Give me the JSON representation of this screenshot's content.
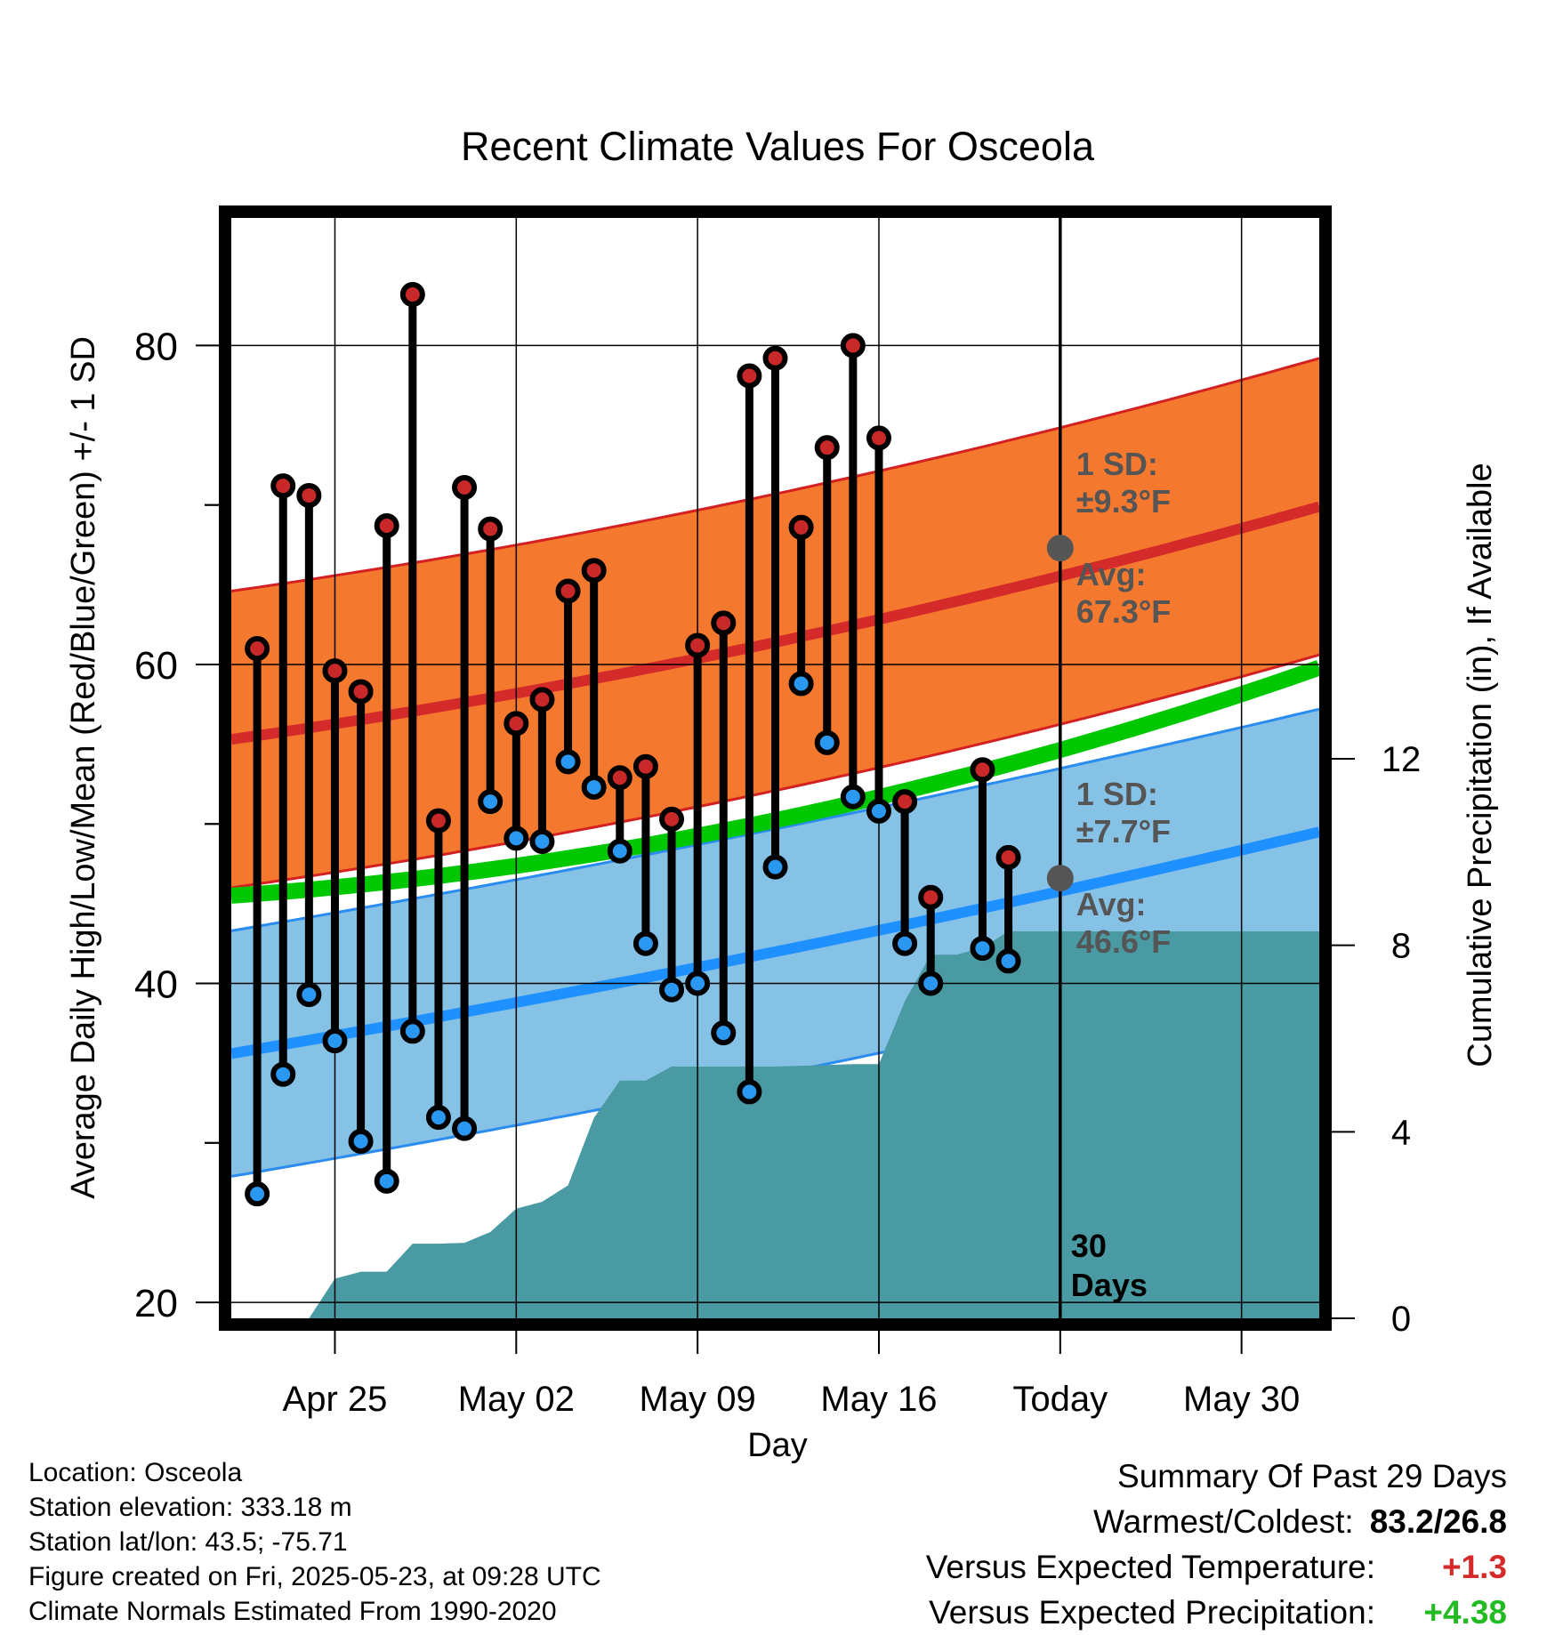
{
  "chart_data": {
    "type": "line",
    "title": "Recent Climate Values For Osceola",
    "xlabel": "Day",
    "ylabel_left": "Average Daily High/Low/Mean (Red/Blue/Green) +/- 1 SD",
    "ylabel_right": "Cumulative Precipitation (in), If Available",
    "ylim_left": [
      19,
      88
    ],
    "ylim_right": [
      0,
      23.6
    ],
    "yticks_left": [
      20,
      40,
      60,
      80
    ],
    "yticks_right": [
      0,
      4,
      8,
      12
    ],
    "x_range_days": [
      "2025-04-21",
      "2025-06-02"
    ],
    "x_ticks": [
      {
        "date": "2025-04-25",
        "label": "Apr 25"
      },
      {
        "date": "2025-05-02",
        "label": "May 02"
      },
      {
        "date": "2025-05-09",
        "label": "May 09"
      },
      {
        "date": "2025-05-16",
        "label": "May 16"
      },
      {
        "date": "2025-05-23",
        "label": "Today"
      },
      {
        "date": "2025-05-30",
        "label": "May 30"
      }
    ],
    "grid": true,
    "today_marker": {
      "date": "2025-05-23",
      "label": "30\nDays"
    },
    "daily": [
      {
        "date": "2025-04-22",
        "high": 61.0,
        "low": 26.8
      },
      {
        "date": "2025-04-23",
        "high": 71.2,
        "low": 34.3
      },
      {
        "date": "2025-04-24",
        "high": 70.6,
        "low": 39.3
      },
      {
        "date": "2025-04-25",
        "high": 59.6,
        "low": 36.4
      },
      {
        "date": "2025-04-26",
        "high": 58.3,
        "low": 30.1
      },
      {
        "date": "2025-04-27",
        "high": 68.7,
        "low": 27.6
      },
      {
        "date": "2025-04-28",
        "high": 83.2,
        "low": 37.0
      },
      {
        "date": "2025-04-29",
        "high": 50.2,
        "low": 31.6
      },
      {
        "date": "2025-04-30",
        "high": 71.1,
        "low": 30.9
      },
      {
        "date": "2025-05-01",
        "high": 68.5,
        "low": 51.4
      },
      {
        "date": "2025-05-02",
        "high": 56.3,
        "low": 49.1
      },
      {
        "date": "2025-05-03",
        "high": 57.8,
        "low": 48.9
      },
      {
        "date": "2025-05-04",
        "high": 64.6,
        "low": 53.9
      },
      {
        "date": "2025-05-05",
        "high": 65.9,
        "low": 52.3
      },
      {
        "date": "2025-05-06",
        "high": 52.9,
        "low": 48.3
      },
      {
        "date": "2025-05-07",
        "high": 53.6,
        "low": 42.5
      },
      {
        "date": "2025-05-08",
        "high": 50.3,
        "low": 39.6
      },
      {
        "date": "2025-05-09",
        "high": 61.2,
        "low": 40.0
      },
      {
        "date": "2025-05-10",
        "high": 62.6,
        "low": 36.9
      },
      {
        "date": "2025-05-11",
        "high": 78.1,
        "low": 33.2
      },
      {
        "date": "2025-05-12",
        "high": 79.2,
        "low": 47.3
      },
      {
        "date": "2025-05-13",
        "high": 68.6,
        "low": 58.8
      },
      {
        "date": "2025-05-14",
        "high": 73.6,
        "low": 55.1
      },
      {
        "date": "2025-05-15",
        "high": 80.0,
        "low": 51.7
      },
      {
        "date": "2025-05-16",
        "high": 74.2,
        "low": 50.8
      },
      {
        "date": "2025-05-17",
        "high": 51.4,
        "low": 42.5
      },
      {
        "date": "2025-05-18",
        "high": 45.4,
        "low": 40.0
      },
      {
        "date": "2025-05-20",
        "high": 53.4,
        "low": 42.2
      },
      {
        "date": "2025-05-21",
        "high": 47.9,
        "low": 41.4
      }
    ],
    "normals": {
      "start_date": "2025-04-21",
      "end_date": "2025-06-02",
      "today_avg_high": 67.3,
      "today_avg_low": 46.6,
      "high_sd": 9.3,
      "low_sd": 7.7,
      "start_avg_high": 55.3,
      "end_avg_high": 69.9,
      "start_avg_low": 35.6,
      "end_avg_low": 49.5,
      "start_avg_mean": 45.5,
      "end_avg_mean": 59.8
    },
    "precipitation_cumulative": [
      {
        "date": "2025-04-21",
        "value": 0
      },
      {
        "date": "2025-04-23",
        "value": 0
      },
      {
        "date": "2025-04-24",
        "value": 0
      },
      {
        "date": "2025-04-25",
        "value": 0.85
      },
      {
        "date": "2025-04-26",
        "value": 1.0
      },
      {
        "date": "2025-04-27",
        "value": 1.0
      },
      {
        "date": "2025-04-28",
        "value": 1.6
      },
      {
        "date": "2025-04-29",
        "value": 1.6
      },
      {
        "date": "2025-04-30",
        "value": 1.62
      },
      {
        "date": "2025-05-01",
        "value": 1.85
      },
      {
        "date": "2025-05-02",
        "value": 2.35
      },
      {
        "date": "2025-05-03",
        "value": 2.5
      },
      {
        "date": "2025-05-04",
        "value": 2.85
      },
      {
        "date": "2025-05-05",
        "value": 4.3
      },
      {
        "date": "2025-05-06",
        "value": 5.1
      },
      {
        "date": "2025-05-07",
        "value": 5.1
      },
      {
        "date": "2025-05-08",
        "value": 5.4
      },
      {
        "date": "2025-05-09",
        "value": 5.4
      },
      {
        "date": "2025-05-12",
        "value": 5.4
      },
      {
        "date": "2025-05-15",
        "value": 5.45
      },
      {
        "date": "2025-05-16",
        "value": 5.45
      },
      {
        "date": "2025-05-17",
        "value": 6.8
      },
      {
        "date": "2025-05-18",
        "value": 7.8
      },
      {
        "date": "2025-05-19",
        "value": 7.8
      },
      {
        "date": "2025-05-20",
        "value": 7.95
      },
      {
        "date": "2025-05-21",
        "value": 8.3
      },
      {
        "date": "2025-06-02",
        "value": 8.3
      }
    ],
    "annotations": {
      "high_sd_label": "1 SD:",
      "high_sd_value": "±9.3°F",
      "high_avg_label": "Avg:",
      "high_avg_value": "67.3°F",
      "low_sd_label": "1 SD:",
      "low_sd_value": "±7.7°F",
      "low_avg_label": "Avg:",
      "low_avg_value": "46.6°F"
    },
    "colors": {
      "high_band": "#f4792f",
      "high_band_edge": "#d42020",
      "high_avg": "#d42a2a",
      "mean_avg": "#00c800",
      "low_band": "#86c1e6",
      "low_band_edge": "#2a8cf0",
      "low_avg": "#1e90ff",
      "precip": "#4a9aa4",
      "high_dot": "#c82828",
      "low_dot": "#2a98f0",
      "today_dot": "#555555",
      "annotation_text": "#555555"
    }
  },
  "info": {
    "location": "Location: Osceola",
    "elevation": "Station elevation: 333.18 m",
    "latlon": "Station lat/lon: 43.5; -75.71",
    "created": "Figure created on Fri, 2025-05-23, at 09:28 UTC",
    "normals": "Climate Normals Estimated From 1990-2020"
  },
  "summary": {
    "title": "Summary Of Past 29 Days",
    "warmest_label": "Warmest/Coldest:",
    "warmest_value": "83.2/26.8",
    "temp_label": "Versus Expected Temperature:",
    "temp_value": "+1.3",
    "temp_color": "#d42a2a",
    "precip_label": "Versus Expected Precipitation:",
    "precip_value": "+4.38",
    "precip_color": "#22bb22"
  }
}
